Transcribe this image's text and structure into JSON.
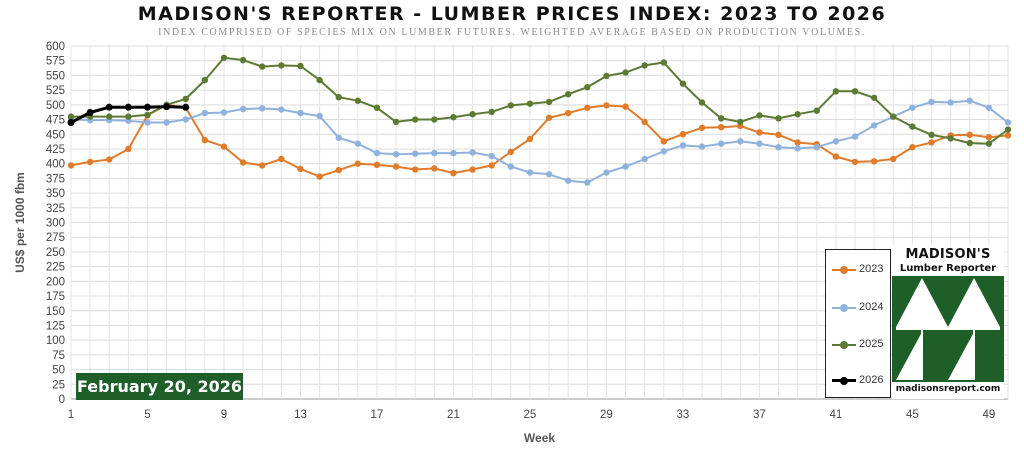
{
  "header": {
    "title": "MADISON'S REPORTER - LUMBER PRICES INDEX: 2023 TO 2026",
    "subtitle": "INDEX COMPRISED OF SPECIES MIX ON LUMBER FUTURES. WEIGHTED AVERAGE BASED ON PRODUCTION VOLUMES."
  },
  "date_label": "February 20, 2026",
  "logo": {
    "line1": "MADISON'S",
    "line2": "Lumber Reporter",
    "url": "madisonsreport.com",
    "color": "#1e5e28"
  },
  "chart_data": {
    "type": "line",
    "xlabel": "Week",
    "ylabel": "US$ per 1000 fbm",
    "ylim": [
      0,
      600
    ],
    "xlim": [
      1,
      50
    ],
    "yticks": [
      0,
      25,
      50,
      75,
      100,
      125,
      150,
      175,
      200,
      225,
      250,
      275,
      300,
      325,
      350,
      375,
      400,
      425,
      450,
      475,
      500,
      525,
      550,
      575,
      600
    ],
    "xticks": [
      1,
      5,
      9,
      13,
      17,
      21,
      25,
      29,
      33,
      37,
      41,
      45,
      49
    ],
    "grid": true,
    "legend_position": "bottom-right",
    "series": [
      {
        "name": "2023",
        "color": "#e07b2a",
        "values": [
          397,
          403,
          407,
          425,
          482,
          500,
          495,
          440,
          429,
          402,
          397,
          408,
          391,
          378,
          389,
          400,
          398,
          395,
          390,
          392,
          384,
          390,
          397,
          420,
          442,
          478,
          486,
          495,
          499,
          497,
          471,
          438,
          450,
          461,
          462,
          464,
          453,
          449,
          436,
          433,
          412,
          403,
          404,
          408,
          428,
          436,
          448,
          449,
          445,
          448
        ]
      },
      {
        "name": "2024",
        "color": "#8fb2dd",
        "values": [
          475,
          474,
          474,
          473,
          470,
          470,
          475,
          486,
          487,
          493,
          494,
          492,
          486,
          481,
          444,
          434,
          418,
          416,
          417,
          418,
          418,
          419,
          413,
          395,
          385,
          382,
          371,
          368,
          385,
          395,
          408,
          421,
          431,
          429,
          434,
          438,
          434,
          428,
          426,
          428,
          438,
          446,
          465,
          480,
          495,
          505,
          504,
          507,
          495,
          470
        ]
      },
      {
        "name": "2025",
        "color": "#5d7a35",
        "values": [
          480,
          480,
          480,
          480,
          483,
          500,
          510,
          542,
          580,
          576,
          565,
          567,
          566,
          542,
          513,
          507,
          495,
          471,
          475,
          475,
          479,
          484,
          488,
          499,
          502,
          505,
          518,
          530,
          549,
          555,
          567,
          572,
          536,
          504,
          477,
          471,
          482,
          477,
          484,
          490,
          523,
          523,
          512,
          480,
          463,
          449,
          443,
          435,
          434,
          458
        ]
      },
      {
        "name": "2026",
        "color": "#000000",
        "values": [
          470,
          487,
          496,
          496,
          496,
          497,
          496
        ]
      }
    ]
  }
}
